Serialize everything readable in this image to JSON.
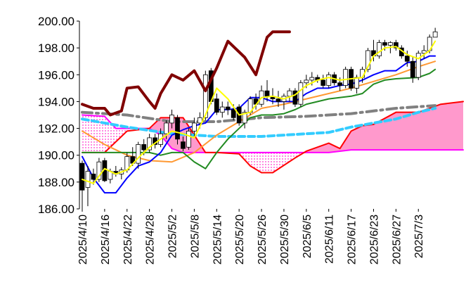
{
  "chart_data": {
    "type": "candlestick",
    "xlim": [
      -0.5,
      68.5
    ],
    "ylim": [
      186,
      200
    ],
    "yticks": [
      {
        "value": 186,
        "label": "186.00"
      },
      {
        "value": 188,
        "label": "188.00"
      },
      {
        "value": 190,
        "label": "190.00"
      },
      {
        "value": 192,
        "label": "192.00"
      },
      {
        "value": 194,
        "label": "194.00"
      },
      {
        "value": 196,
        "label": "196.00"
      },
      {
        "value": 198,
        "label": "198.00"
      },
      {
        "value": 200,
        "label": "200.00"
      }
    ],
    "xticks": [
      {
        "value": 0,
        "label": "2025/4/10"
      },
      {
        "value": 4,
        "label": "2025/4/16"
      },
      {
        "value": 8,
        "label": "2025/4/22"
      },
      {
        "value": 12,
        "label": "2025/4/28"
      },
      {
        "value": 16,
        "label": "2025/5/2"
      },
      {
        "value": 20,
        "label": "2025/5/8"
      },
      {
        "value": 24,
        "label": "2025/5/14"
      },
      {
        "value": 28,
        "label": "2025/5/20"
      },
      {
        "value": 32,
        "label": "2025/5/26"
      },
      {
        "value": 36,
        "label": "2025/5/30"
      },
      {
        "value": 40,
        "label": "2025/6/5"
      },
      {
        "value": 44,
        "label": "2025/6/11"
      },
      {
        "value": 48,
        "label": "2025/6/17"
      },
      {
        "value": 52,
        "label": "2025/6/23"
      },
      {
        "value": 56,
        "label": "2025/6/27"
      },
      {
        "value": 60,
        "label": "2025/7/3"
      }
    ],
    "cloud": {
      "color": "#ff99cc",
      "span_a": {
        "color": "#ff0000",
        "x": [
          0,
          4,
          8,
          12,
          14,
          18,
          22,
          24,
          28,
          30,
          32,
          34,
          38,
          40,
          44,
          46,
          48,
          50,
          52,
          56,
          60,
          64,
          68
        ],
        "values": [
          190.2,
          190.2,
          191.8,
          192.0,
          192.8,
          192.8,
          190.2,
          190.2,
          190.1,
          189.2,
          188.7,
          188.7,
          189.8,
          190.3,
          190.9,
          190.5,
          191.8,
          192.2,
          192.3,
          193.2,
          193.2,
          193.8,
          194.0
        ]
      },
      "span_b": {
        "color": "#ff00ff",
        "x": [
          0,
          4,
          6,
          12,
          14,
          16,
          18,
          22,
          38,
          44,
          48,
          50,
          68
        ],
        "values": [
          193.0,
          192.9,
          192.0,
          192.0,
          191.5,
          190.5,
          190.2,
          190.2,
          190.2,
          190.2,
          190.4,
          190.4,
          190.4
        ]
      }
    },
    "lines": [
      {
        "color": "#808080",
        "style": "dashdot",
        "x": [
          0,
          8,
          16,
          24,
          32,
          40,
          48,
          56,
          63
        ],
        "values": [
          193.2,
          193.0,
          192.5,
          192.5,
          192.8,
          192.9,
          193.1,
          193.5,
          193.7
        ]
      },
      {
        "color": "#33ccff",
        "style": "dashed",
        "x": [
          0,
          8,
          16,
          24,
          32,
          40,
          44,
          48,
          52,
          56,
          60,
          63
        ],
        "values": [
          192.7,
          192.1,
          191.6,
          191.4,
          191.4,
          191.6,
          191.7,
          192.1,
          192.4,
          192.7,
          193.2,
          193.5
        ]
      },
      {
        "color": "#ff9933",
        "style": "thin",
        "x": [
          0,
          4,
          8,
          12,
          16,
          20,
          24,
          28,
          32,
          36,
          40,
          44,
          48,
          52,
          56,
          60,
          63
        ],
        "values": [
          191.8,
          190.8,
          190.0,
          189.6,
          189.5,
          190.2,
          191.5,
          192.5,
          193.5,
          193.8,
          194.2,
          194.6,
          195.0,
          195.5,
          196.0,
          196.6,
          197.0
        ]
      },
      {
        "color": "#228b22",
        "style": "thin",
        "x": [
          0,
          8,
          12,
          14,
          16,
          18,
          20,
          22,
          24,
          26,
          28,
          30,
          32,
          34,
          36,
          38,
          40,
          44,
          48,
          50,
          52,
          54,
          56,
          60,
          62,
          63
        ],
        "values": [
          190.2,
          190.2,
          190.2,
          190.0,
          190.2,
          190.2,
          189.5,
          189.0,
          190.2,
          191.2,
          192.0,
          192.8,
          193.0,
          193.0,
          193.1,
          193.4,
          193.8,
          194.2,
          194.4,
          194.6,
          195.3,
          195.6,
          195.7,
          195.8,
          196.1,
          196.4
        ]
      },
      {
        "color": "#0000ff",
        "style": "thin",
        "x": [
          0,
          2,
          4,
          6,
          8,
          10,
          12,
          14,
          16,
          18,
          20,
          22,
          24,
          26,
          28,
          30,
          32,
          34,
          36,
          38,
          40,
          42,
          44,
          46,
          48,
          50,
          52,
          54,
          56,
          58,
          60,
          62,
          63
        ],
        "values": [
          189.9,
          188.3,
          187.2,
          187.2,
          188.3,
          189.2,
          189.5,
          190.2,
          191.5,
          191.9,
          192.2,
          192.4,
          193.4,
          193.4,
          193.5,
          194.3,
          194.3,
          194.0,
          194.0,
          194.0,
          194.6,
          195.0,
          195.0,
          195.2,
          195.3,
          195.6,
          196.0,
          196.3,
          196.3,
          196.9,
          197.0,
          197.4,
          197.4
        ]
      },
      {
        "color": "#ffff00",
        "style": "thin",
        "x": [
          0,
          2,
          4,
          6,
          8,
          10,
          12,
          14,
          16,
          18,
          20,
          22,
          24,
          26,
          28,
          30,
          32,
          34,
          36,
          38,
          40,
          42,
          44,
          46,
          48,
          50,
          52,
          54,
          56,
          58,
          60,
          62,
          63
        ],
        "values": [
          188.2,
          187.9,
          189.0,
          188.6,
          188.9,
          189.8,
          190.6,
          191.2,
          191.8,
          191.6,
          191.3,
          193.0,
          195.0,
          194.2,
          193.0,
          193.2,
          194.3,
          194.4,
          194.2,
          194.5,
          195.2,
          195.6,
          195.8,
          195.6,
          195.7,
          195.8,
          197.4,
          198.0,
          198.1,
          197.5,
          197.2,
          197.8,
          198.5
        ]
      },
      {
        "color": "#800000",
        "style": "thick",
        "x": [
          0,
          2,
          4,
          5,
          7,
          8,
          10,
          12,
          13,
          14,
          16,
          18,
          20,
          22,
          24,
          26,
          29,
          31,
          33,
          34,
          37
        ],
        "values": [
          193.8,
          193.5,
          193.5,
          193.0,
          193.3,
          195.0,
          195.1,
          194.0,
          193.5,
          194.6,
          196.0,
          195.6,
          196.3,
          194.8,
          196.5,
          198.5,
          197.3,
          196.0,
          198.8,
          199.2,
          199.2
        ]
      }
    ],
    "ohlc": [
      [
        189.4,
        189.6,
        186.0,
        187.4
      ],
      [
        187.6,
        189.2,
        186.2,
        188.8
      ],
      [
        188.6,
        189.0,
        187.8,
        188.2
      ],
      [
        188.2,
        189.8,
        188.0,
        189.5
      ],
      [
        189.6,
        189.8,
        188.0,
        188.1
      ],
      [
        188.2,
        189.0,
        187.9,
        188.8
      ],
      [
        188.8,
        189.2,
        188.4,
        188.6
      ],
      [
        188.6,
        189.1,
        188.2,
        188.9
      ],
      [
        188.9,
        190.2,
        188.7,
        189.9
      ],
      [
        189.9,
        190.6,
        189.2,
        189.4
      ],
      [
        189.4,
        191.0,
        189.0,
        190.8
      ],
      [
        190.8,
        191.2,
        190.0,
        190.4
      ],
      [
        190.4,
        191.6,
        190.2,
        191.3
      ],
      [
        191.3,
        191.6,
        190.5,
        190.8
      ],
      [
        190.8,
        192.0,
        190.6,
        191.6
      ],
      [
        191.6,
        192.6,
        191.2,
        192.4
      ],
      [
        192.4,
        193.4,
        192.0,
        193.0
      ],
      [
        192.8,
        193.0,
        190.8,
        191.2
      ],
      [
        191.0,
        191.4,
        190.3,
        190.5
      ],
      [
        190.6,
        192.0,
        190.4,
        191.8
      ],
      [
        191.8,
        192.8,
        191.4,
        192.4
      ],
      [
        192.4,
        193.2,
        192.0,
        192.8
      ],
      [
        192.8,
        196.3,
        192.6,
        196.0
      ],
      [
        196.3,
        196.5,
        193.8,
        194.0
      ],
      [
        194.2,
        194.6,
        193.0,
        193.2
      ],
      [
        193.2,
        194.0,
        192.8,
        193.6
      ],
      [
        193.6,
        194.0,
        193.0,
        193.4
      ],
      [
        193.4,
        193.8,
        192.6,
        192.8
      ],
      [
        193.6,
        193.8,
        192.2,
        192.4
      ],
      [
        192.4,
        193.4,
        192.0,
        193.2
      ],
      [
        193.2,
        194.4,
        193.0,
        194.2
      ],
      [
        194.2,
        194.6,
        193.4,
        193.8
      ],
      [
        193.8,
        195.2,
        193.6,
        194.8
      ],
      [
        194.8,
        195.6,
        194.0,
        194.4
      ],
      [
        194.4,
        195.0,
        193.8,
        194.2
      ],
      [
        194.2,
        194.8,
        193.6,
        194.0
      ],
      [
        194.0,
        194.6,
        193.4,
        194.4
      ],
      [
        194.4,
        195.0,
        194.0,
        194.8
      ],
      [
        194.8,
        195.0,
        193.6,
        193.8
      ],
      [
        193.8,
        195.6,
        193.6,
        195.4
      ],
      [
        195.4,
        196.0,
        195.0,
        195.6
      ],
      [
        195.6,
        196.2,
        195.2,
        195.8
      ],
      [
        195.8,
        196.0,
        195.4,
        195.6
      ],
      [
        195.6,
        196.0,
        195.0,
        195.2
      ],
      [
        195.2,
        196.2,
        195.0,
        196.0
      ],
      [
        196.0,
        196.2,
        195.2,
        195.4
      ],
      [
        195.4,
        195.8,
        194.8,
        195.2
      ],
      [
        195.2,
        196.6,
        195.0,
        196.4
      ],
      [
        196.4,
        196.6,
        194.8,
        195.0
      ],
      [
        195.0,
        196.0,
        194.6,
        195.8
      ],
      [
        195.8,
        196.6,
        195.4,
        196.4
      ],
      [
        196.4,
        198.0,
        196.2,
        197.8
      ],
      [
        197.8,
        198.6,
        197.0,
        197.4
      ],
      [
        197.4,
        198.6,
        197.2,
        198.4
      ],
      [
        198.4,
        198.6,
        197.8,
        198.2
      ],
      [
        198.2,
        198.5,
        197.6,
        198.4
      ],
      [
        198.4,
        198.6,
        197.8,
        198.0
      ],
      [
        198.0,
        198.2,
        197.2,
        197.4
      ],
      [
        197.4,
        197.8,
        196.6,
        197.0
      ],
      [
        197.0,
        197.4,
        195.4,
        195.8
      ],
      [
        195.8,
        197.8,
        195.6,
        197.6
      ],
      [
        197.6,
        198.2,
        197.2,
        197.8
      ],
      [
        197.8,
        199.0,
        197.6,
        198.8
      ],
      [
        198.8,
        199.5,
        198.8,
        199.2
      ]
    ]
  }
}
